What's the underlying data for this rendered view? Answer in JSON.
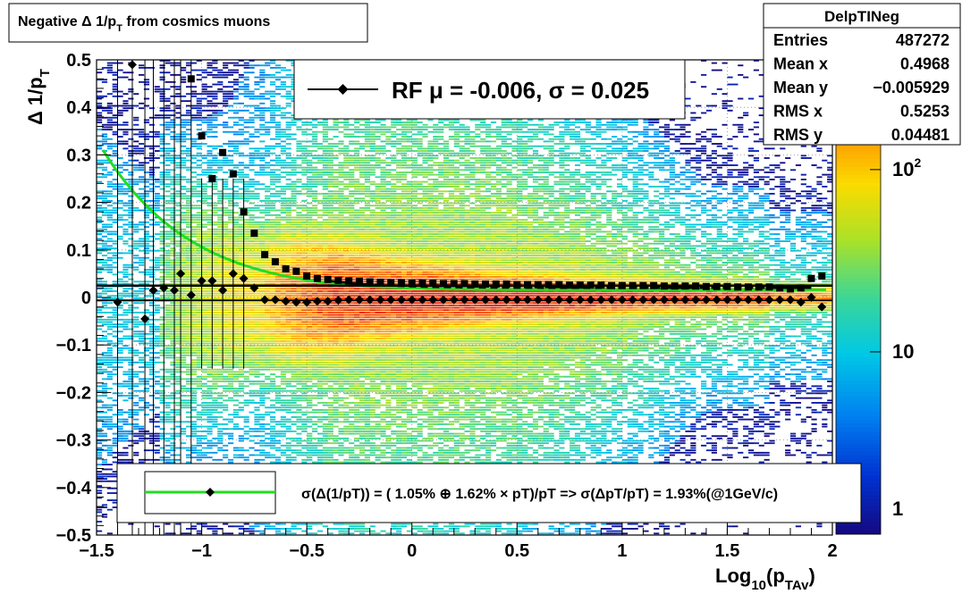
{
  "title_box": {
    "text": "Negative Δ 1/p",
    "sub": "T",
    "suffix": " from cosmics muons"
  },
  "stats": {
    "name": "DelpTINeg",
    "rows": [
      {
        "label": "Entries",
        "value": "487272"
      },
      {
        "label": "Mean x",
        "value": "0.4968"
      },
      {
        "label": "Mean y",
        "value": "−0.005929"
      },
      {
        "label": "RMS x",
        "value": "0.5253"
      },
      {
        "label": "RMS y",
        "value": "0.04481"
      }
    ]
  },
  "legend_top": {
    "text": "RF μ = -0.006, σ =   0.025"
  },
  "legend_bottom": {
    "text": "σ(Δ(1/pT)) = ( 1.05% ⊕  1.62% × pT)/pT => σ(ΔpT/pT) =  1.93%(@1GeV/c)",
    "line_color": "#22dd22"
  },
  "axes": {
    "xlabel_main": "Log",
    "xlabel_sub1": "10",
    "xlabel_mid": "(p",
    "xlabel_sub2": "TAv",
    "xlabel_end": ")",
    "ylabel_main": "Δ 1/p",
    "ylabel_sub": "T"
  },
  "chart_data": {
    "type": "heatmap",
    "title": "Negative Δ 1/pT from cosmics muons",
    "xlabel": "Log10(pTAv)",
    "ylabel": "Δ 1/pT",
    "xlim": [
      -1.5,
      2.0
    ],
    "ylim": [
      -0.5,
      0.5
    ],
    "x_ticks": [
      -1.5,
      -1,
      -0.5,
      0,
      0.5,
      1,
      1.5,
      2
    ],
    "x_tick_labels": [
      "−1.5",
      "−1",
      "−0.5",
      "0",
      "0.5",
      "1",
      "1.5",
      "2"
    ],
    "y_ticks": [
      -0.5,
      -0.4,
      -0.3,
      -0.2,
      -0.1,
      0,
      0.1,
      0.2,
      0.3,
      0.4,
      0.5
    ],
    "y_tick_labels": [
      "−0.5",
      "−0.4",
      "−0.3",
      "−0.2",
      "−0.1",
      "0",
      "0.1",
      "0.2",
      "0.3",
      "0.4",
      "0.5"
    ],
    "z_scale": "log",
    "z_tick_labels": [
      "1",
      "10",
      "10²"
    ],
    "z_ticks": [
      1,
      10,
      100
    ],
    "grid": true,
    "mean_profile": {
      "x": [
        -1.4,
        -1.33,
        -1.27,
        -1.23,
        -1.18,
        -1.13,
        -1.1,
        -1.05,
        -1.0,
        -0.95,
        -0.9,
        -0.85,
        -0.8,
        -0.75,
        -0.7,
        -0.65,
        -0.6,
        -0.55,
        -0.5,
        -0.45,
        -0.4,
        -0.35,
        -0.3,
        -0.25,
        -0.2,
        -0.15,
        -0.1,
        -0.05,
        0.0,
        0.05,
        0.1,
        0.15,
        0.2,
        0.25,
        0.3,
        0.35,
        0.4,
        0.45,
        0.5,
        0.55,
        0.6,
        0.65,
        0.7,
        0.75,
        0.8,
        0.85,
        0.9,
        0.95,
        1.0,
        1.05,
        1.1,
        1.15,
        1.2,
        1.25,
        1.3,
        1.35,
        1.4,
        1.45,
        1.5,
        1.55,
        1.6,
        1.65,
        1.7,
        1.75,
        1.8,
        1.85,
        1.9,
        1.95
      ],
      "y": [
        -0.01,
        0.49,
        -0.045,
        0.015,
        0.02,
        0.015,
        0.05,
        0.005,
        0.035,
        0.035,
        0.015,
        0.05,
        0.04,
        0.02,
        -0.005,
        -0.005,
        -0.008,
        -0.01,
        -0.01,
        -0.008,
        -0.008,
        -0.006,
        -0.005,
        -0.005,
        -0.005,
        -0.005,
        -0.005,
        -0.005,
        -0.005,
        -0.005,
        -0.005,
        -0.005,
        -0.005,
        -0.005,
        -0.005,
        -0.005,
        -0.005,
        -0.005,
        -0.005,
        -0.005,
        -0.005,
        -0.005,
        -0.005,
        -0.005,
        -0.005,
        -0.005,
        -0.005,
        -0.005,
        -0.005,
        -0.005,
        -0.005,
        -0.005,
        -0.005,
        -0.005,
        -0.005,
        -0.005,
        -0.005,
        -0.005,
        -0.005,
        -0.005,
        -0.005,
        -0.005,
        -0.005,
        -0.005,
        -0.005,
        -0.01,
        0.0,
        -0.02
      ]
    },
    "rms_profile": {
      "x": [
        -1.05,
        -1.0,
        -0.95,
        -0.9,
        -0.85,
        -0.8,
        -0.75,
        -0.7,
        -0.65,
        -0.6,
        -0.55,
        -0.5,
        -0.45,
        -0.4,
        -0.35,
        -0.3,
        -0.25,
        -0.2,
        -0.15,
        -0.1,
        -0.05,
        0.0,
        0.05,
        0.1,
        0.15,
        0.2,
        0.25,
        0.3,
        0.35,
        0.4,
        0.45,
        0.5,
        0.55,
        0.6,
        0.65,
        0.7,
        0.75,
        0.8,
        0.85,
        0.9,
        0.95,
        1.0,
        1.05,
        1.1,
        1.15,
        1.2,
        1.25,
        1.3,
        1.35,
        1.4,
        1.45,
        1.5,
        1.55,
        1.6,
        1.65,
        1.7,
        1.75,
        1.8,
        1.85,
        1.9,
        1.95
      ],
      "y": [
        0.46,
        0.34,
        0.25,
        0.305,
        0.26,
        0.18,
        0.135,
        0.09,
        0.075,
        0.06,
        0.055,
        0.045,
        0.04,
        0.038,
        0.036,
        0.035,
        0.034,
        0.033,
        0.032,
        0.031,
        0.031,
        0.03,
        0.03,
        0.03,
        0.029,
        0.029,
        0.029,
        0.028,
        0.028,
        0.028,
        0.028,
        0.027,
        0.027,
        0.027,
        0.027,
        0.027,
        0.026,
        0.026,
        0.026,
        0.026,
        0.025,
        0.025,
        0.025,
        0.025,
        0.025,
        0.024,
        0.024,
        0.024,
        0.024,
        0.023,
        0.023,
        0.023,
        0.022,
        0.022,
        0.022,
        0.022,
        0.02,
        0.018,
        0.02,
        0.04,
        0.045
      ]
    },
    "fit_curve_note": "σ(Δ(1/pT)) = ( 1.05% ⊕  1.62% × pT)/pT",
    "fit_params": {
      "a": 0.0105,
      "b": 0.0162
    },
    "mean_line_y": -0.006,
    "sigma_line_y": 0.025
  }
}
